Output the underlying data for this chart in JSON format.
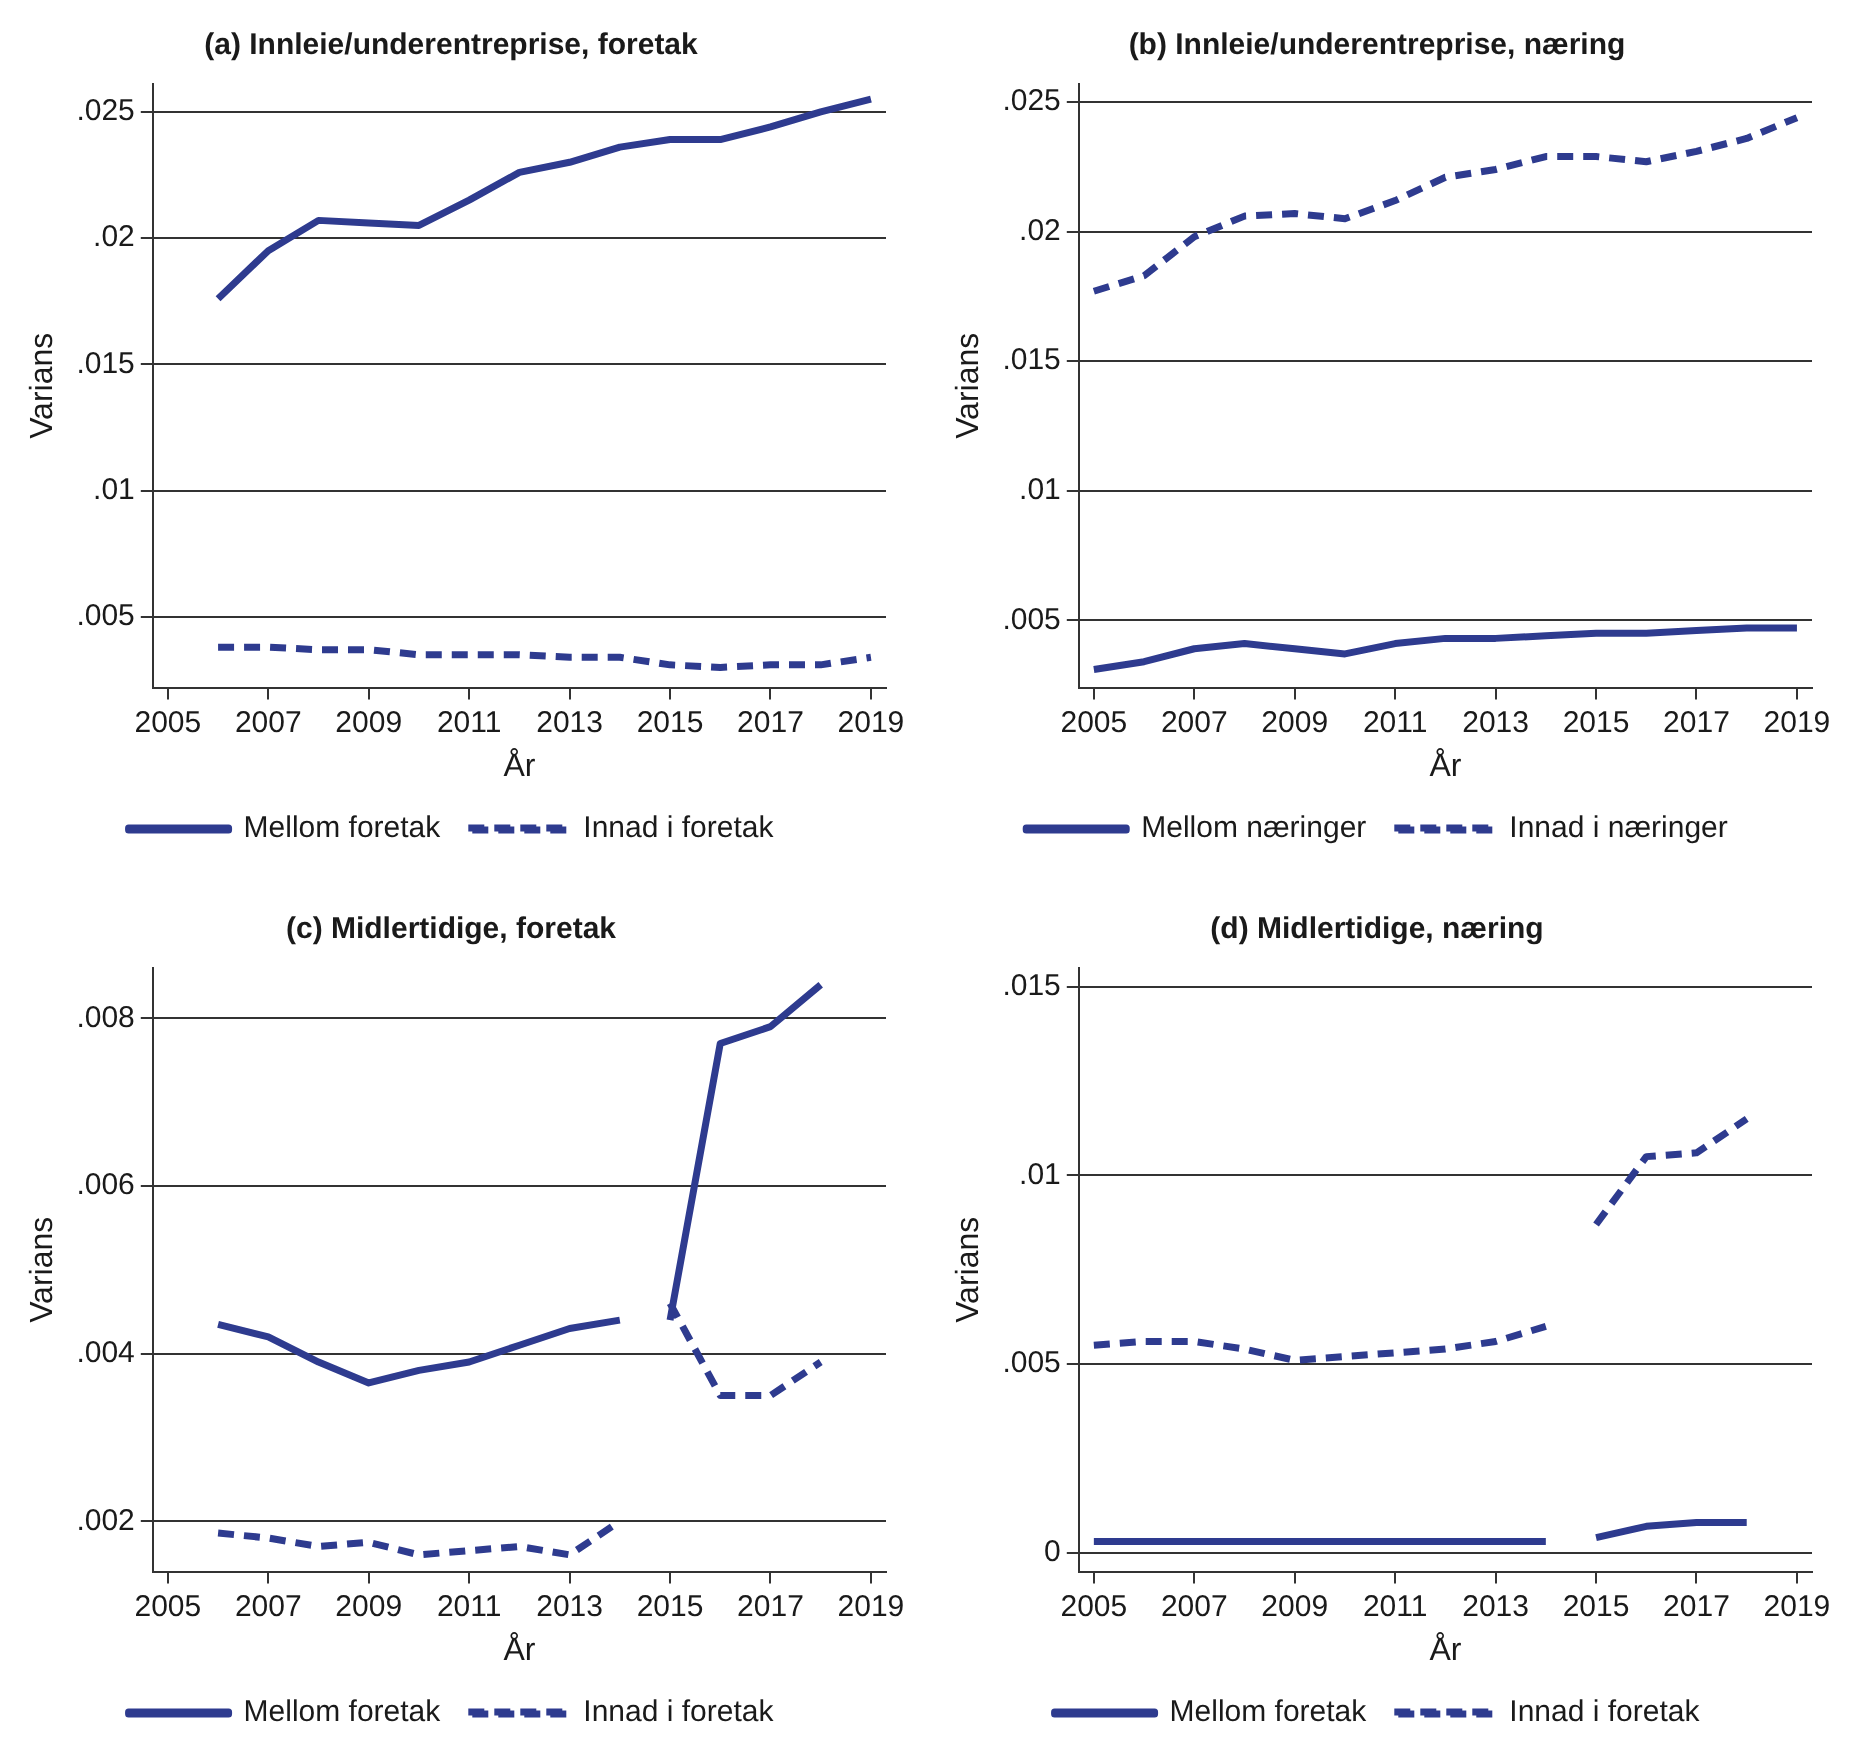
{
  "chart_data": [
    {
      "type": "line",
      "title": "(a) Innleie/underentreprise, foretak",
      "xlabel": "År",
      "ylabel": "Varians",
      "x": [
        2006,
        2007,
        2008,
        2009,
        2010,
        2011,
        2012,
        2013,
        2014,
        2015,
        2016,
        2017,
        2018,
        2019
      ],
      "xlim": [
        2004.7,
        2019.3
      ],
      "xticks": [
        2005,
        2007,
        2009,
        2011,
        2013,
        2015,
        2017,
        2019
      ],
      "ylim": [
        0.0022,
        0.0261
      ],
      "yticks": [
        {
          "value": 0.005,
          "label": ".005"
        },
        {
          "value": 0.01,
          "label": ".01"
        },
        {
          "value": 0.015,
          "label": ".015"
        },
        {
          "value": 0.02,
          "label": ".02"
        },
        {
          "value": 0.025,
          "label": ".025"
        }
      ],
      "grid": "y",
      "legend": "bottom",
      "series": [
        {
          "name": "Mellom foretak",
          "color": "#2e3b8f",
          "line_style": "solid",
          "values": [
            0.0176,
            0.0195,
            0.0207,
            0.0206,
            0.0205,
            0.0215,
            0.0226,
            0.023,
            0.0236,
            0.0239,
            0.0239,
            0.0244,
            0.025,
            0.0255
          ]
        },
        {
          "name": "Innad i foretak",
          "color": "#2e3b8f",
          "line_style": "dashed",
          "values": [
            0.0038,
            0.0038,
            0.0037,
            0.0037,
            0.0035,
            0.0035,
            0.0035,
            0.0034,
            0.0034,
            0.0031,
            0.003,
            0.0031,
            0.0031,
            0.0034
          ]
        }
      ]
    },
    {
      "type": "line",
      "title": "(b) Innleie/underentreprise, næring",
      "xlabel": "År",
      "ylabel": "Varians",
      "x": [
        2005,
        2006,
        2007,
        2008,
        2009,
        2010,
        2011,
        2012,
        2013,
        2014,
        2015,
        2016,
        2017,
        2018,
        2019
      ],
      "xlim": [
        2004.7,
        2019.3
      ],
      "xticks": [
        2005,
        2007,
        2009,
        2011,
        2013,
        2015,
        2017,
        2019
      ],
      "ylim": [
        0.0024,
        0.0257
      ],
      "yticks": [
        {
          "value": 0.005,
          "label": ".005"
        },
        {
          "value": 0.01,
          "label": ".01"
        },
        {
          "value": 0.015,
          "label": ".015"
        },
        {
          "value": 0.02,
          "label": ".02"
        },
        {
          "value": 0.025,
          "label": ".025"
        }
      ],
      "grid": "y",
      "legend": "bottom",
      "series": [
        {
          "name": "Mellom næringer",
          "color": "#2e3b8f",
          "line_style": "solid",
          "values": [
            0.0031,
            0.0034,
            0.0039,
            0.0041,
            0.0039,
            0.0037,
            0.0041,
            0.0043,
            0.0043,
            0.0044,
            0.0045,
            0.0045,
            0.0046,
            0.0047,
            0.0047
          ]
        },
        {
          "name": "Innad i næringer",
          "color": "#2e3b8f",
          "line_style": "dashed",
          "values": [
            0.0177,
            0.0183,
            0.0198,
            0.0206,
            0.0207,
            0.0205,
            0.0212,
            0.0221,
            0.0224,
            0.0229,
            0.0229,
            0.0227,
            0.0231,
            0.0236,
            0.0244
          ]
        }
      ]
    },
    {
      "type": "line",
      "title": "(c) Midlertidige, foretak",
      "xlabel": "År",
      "ylabel": "Varians",
      "x": [
        2006,
        2007,
        2008,
        2009,
        2010,
        2011,
        2012,
        2013,
        2014,
        2014.5,
        2015,
        2016,
        2017,
        2018
      ],
      "xlim": [
        2004.7,
        2019.3
      ],
      "xticks": [
        2005,
        2007,
        2009,
        2011,
        2013,
        2015,
        2017,
        2019
      ],
      "ylim": [
        0.0014,
        0.0086
      ],
      "yticks": [
        {
          "value": 0.002,
          "label": ".002"
        },
        {
          "value": 0.004,
          "label": ".004"
        },
        {
          "value": 0.006,
          "label": ".006"
        },
        {
          "value": 0.008,
          "label": ".008"
        }
      ],
      "grid": "y",
      "legend": "bottom",
      "series": [
        {
          "name": "Mellom foretak",
          "color": "#2e3b8f",
          "line_style": "solid",
          "values": [
            0.00435,
            0.0042,
            0.0039,
            0.00365,
            0.0038,
            0.0039,
            0.0041,
            0.0043,
            0.0044,
            null,
            0.0044,
            0.0077,
            0.0079,
            0.0084
          ]
        },
        {
          "name": "Innad i foretak",
          "color": "#2e3b8f",
          "line_style": "dashed",
          "values": [
            0.00186,
            0.0018,
            0.0017,
            0.00175,
            0.0016,
            0.00165,
            0.0017,
            0.0016,
            0.002,
            null,
            0.0046,
            0.0035,
            0.0035,
            0.0039
          ]
        }
      ]
    },
    {
      "type": "line",
      "title": "(d) Midlertidige, næring",
      "xlabel": "År",
      "ylabel": "Varians",
      "x": [
        2005,
        2006,
        2007,
        2008,
        2009,
        2010,
        2011,
        2012,
        2013,
        2014,
        2014.5,
        2015,
        2016,
        2017,
        2018
      ],
      "xlim": [
        2004.7,
        2019.3
      ],
      "xticks": [
        2005,
        2007,
        2009,
        2011,
        2013,
        2015,
        2017,
        2019
      ],
      "ylim": [
        -0.0005,
        0.0155
      ],
      "yticks": [
        0,
        {
          "value": 0.005,
          "label": ".005"
        },
        {
          "value": 0.01,
          "label": ".01"
        },
        {
          "value": 0.015,
          "label": ".015"
        }
      ],
      "grid": "y",
      "legend": "bottom",
      "series": [
        {
          "name": "Mellom foretak",
          "color": "#2e3b8f",
          "line_style": "solid",
          "values": [
            0.0003,
            0.0003,
            0.0003,
            0.0003,
            0.0003,
            0.0003,
            0.0003,
            0.0003,
            0.0003,
            0.0003,
            null,
            0.0004,
            0.0007,
            0.0008,
            0.0008
          ]
        },
        {
          "name": "Innad i foretak",
          "color": "#2e3b8f",
          "line_style": "dashed",
          "values": [
            0.0055,
            0.0056,
            0.0056,
            0.0054,
            0.0051,
            0.0052,
            0.0053,
            0.0054,
            0.0056,
            0.006,
            null,
            0.0087,
            0.0105,
            0.0106,
            0.0115
          ]
        }
      ]
    }
  ]
}
